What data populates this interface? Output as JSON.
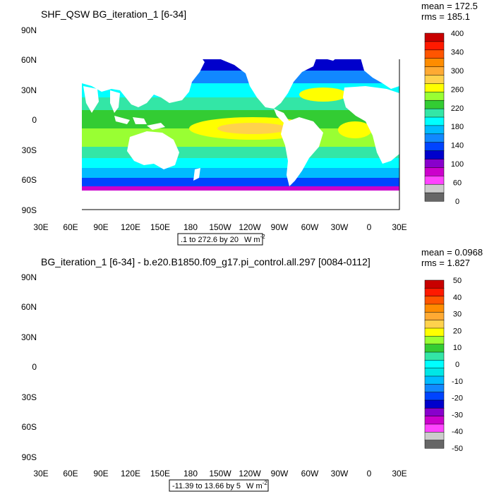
{
  "panels": [
    {
      "title": "SHF_QSW BG_iteration_1 [6-34]",
      "mean_label": "mean = 172.5",
      "rms_label": "rms = 185.1",
      "range_label": ".1 to 272.6 by 20",
      "units_label": "W m",
      "units_exp": "-2",
      "colorbar_labels": [
        "400",
        "340",
        "300",
        "260",
        "220",
        "180",
        "140",
        "100",
        "60",
        "0"
      ],
      "colorbar_colors": [
        "#c80000",
        "#ff1a00",
        "#ff5500",
        "#ff8c00",
        "#ffaa33",
        "#ffd24d",
        "#ffff00",
        "#99ff33",
        "#33cc33",
        "#33e6a6",
        "#00ffff",
        "#00bbff",
        "#1188ff",
        "#0044ff",
        "#0000cc",
        "#8800cc",
        "#cc00cc",
        "#ff44ff",
        "#cccccc",
        "#666666"
      ],
      "lat_labels": [
        "90N",
        "60N",
        "30N",
        "0",
        "30S",
        "60S",
        "90S"
      ],
      "lon_labels": [
        "30E",
        "60E",
        "90E",
        "120E",
        "150E",
        "180",
        "150W",
        "120W",
        "90W",
        "60W",
        "30W",
        "0",
        "30E"
      ]
    },
    {
      "title": "BG_iteration_1 [6-34] - b.e20.B1850.f09_g17.pi_control.all.297 [0084-0112]",
      "mean_label": "mean = 0.0968",
      "rms_label": "rms = 1.827",
      "range_label": "-11.39 to 13.66 by 5",
      "units_label": "W m",
      "units_exp": "-2",
      "colorbar_labels": [
        "50",
        "40",
        "30",
        "20",
        "10",
        "0",
        "-10",
        "-20",
        "-30",
        "-40",
        "-50"
      ],
      "colorbar_colors": [
        "#c80000",
        "#ff1a00",
        "#ff5500",
        "#ff8c00",
        "#ffaa33",
        "#ffd24d",
        "#ffff00",
        "#99ff33",
        "#33cc33",
        "#33e6a6",
        "#00ffff",
        "#00e6e6",
        "#00bbff",
        "#1188ff",
        "#0044ff",
        "#0000cc",
        "#8800cc",
        "#cc00cc",
        "#ff44ff",
        "#cccccc",
        "#666666"
      ],
      "lat_labels": [
        "90N",
        "60N",
        "30N",
        "0",
        "30S",
        "60S",
        "90S"
      ],
      "lon_labels": [
        "30E",
        "60E",
        "90E",
        "120E",
        "150E",
        "180",
        "150W",
        "120W",
        "90W",
        "60W",
        "30W",
        "0",
        "30E"
      ]
    }
  ]
}
